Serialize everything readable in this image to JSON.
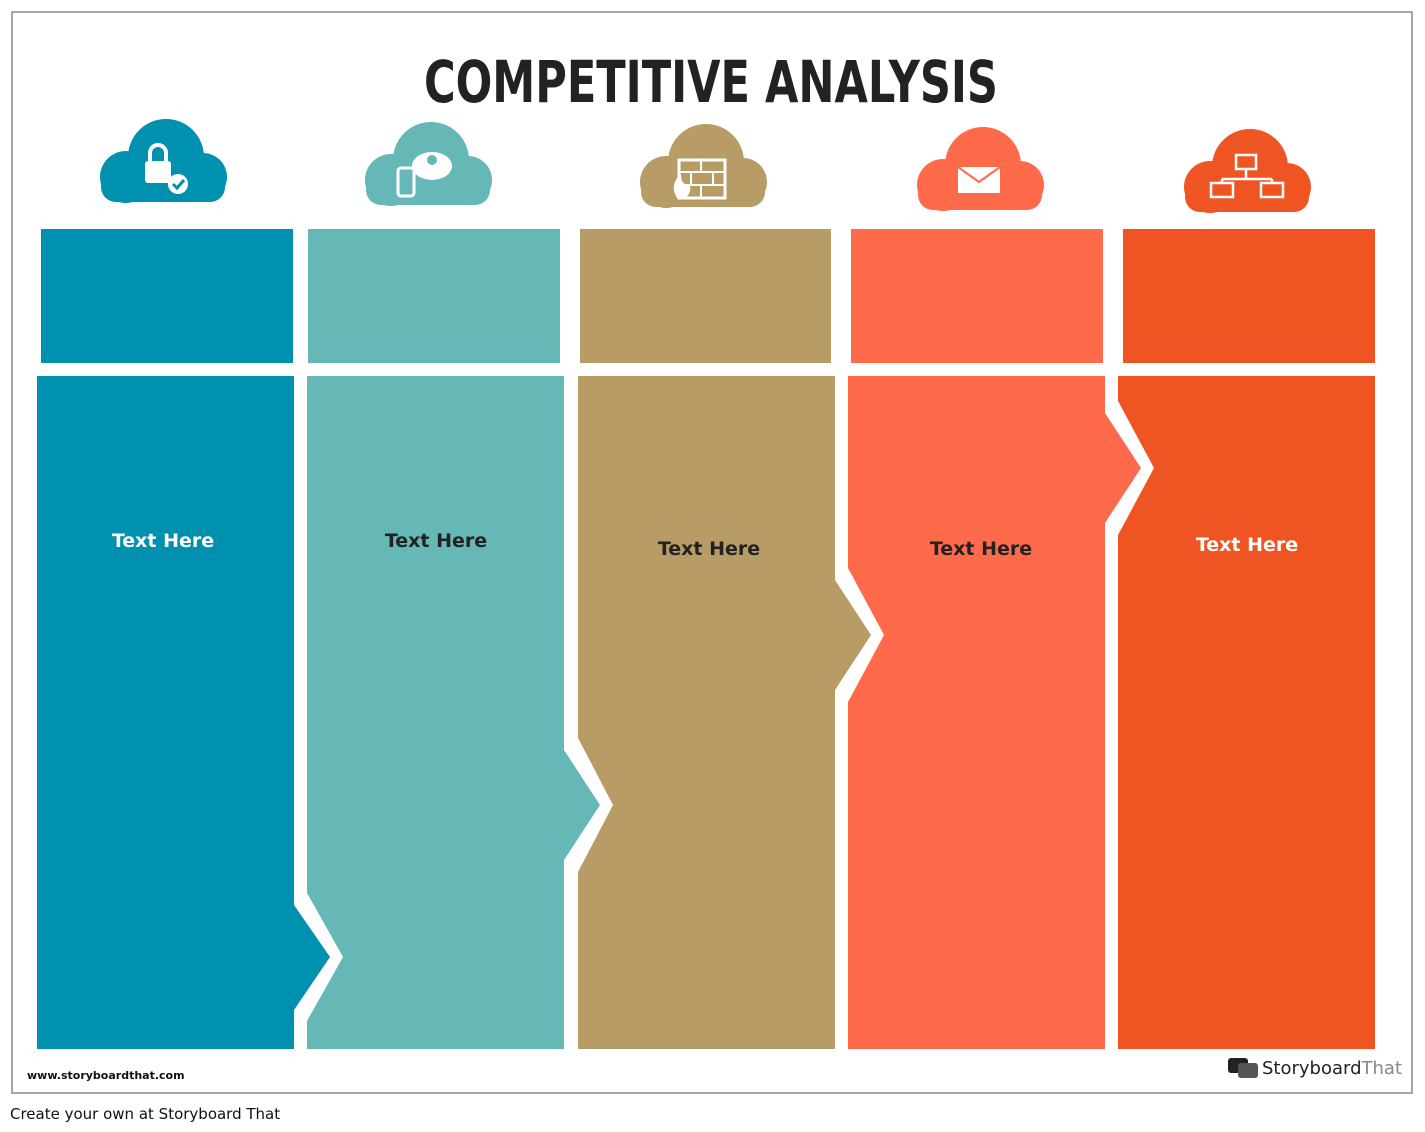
{
  "header": {
    "title": "COMPETITIVE ANALYSIS"
  },
  "columns": [
    {
      "label": "Text Here"
    },
    {
      "label": "Text Here"
    },
    {
      "label": "Text Here"
    },
    {
      "label": "Text Here"
    },
    {
      "label": "Text Here"
    }
  ],
  "footer": {
    "url": "www.storyboardthat.com",
    "logo_primary": "Storyboard",
    "logo_secondary": "That"
  },
  "caption": "Create your own at Storyboard That"
}
